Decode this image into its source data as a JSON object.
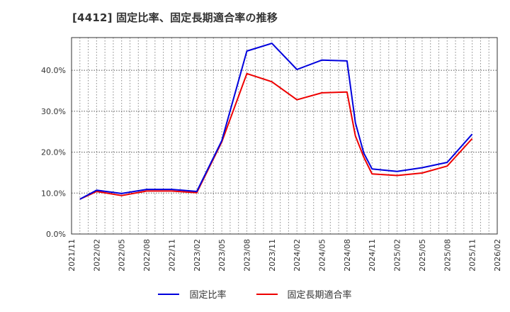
{
  "title": "[4412]  固定比率、固定長期適合率の推移",
  "colors": {
    "series1": "#0000dd",
    "series2": "#ee0000",
    "grid": "#888888",
    "axis": "#333333"
  },
  "legend": [
    {
      "label": "固定比率",
      "color": "#0000dd"
    },
    {
      "label": "固定長期適合率",
      "color": "#ee0000"
    }
  ],
  "chart_data": {
    "type": "line",
    "title": "[4412] 固定比率、固定長期適合率の推移",
    "xlabel": "",
    "ylabel": "",
    "ylim": [
      0,
      48
    ],
    "y_ticks": [
      "0.0%",
      "10.0%",
      "20.0%",
      "30.0%",
      "40.0%"
    ],
    "y_tick_values": [
      0,
      10,
      20,
      30,
      40
    ],
    "x_ticks": [
      "2021/11",
      "2022/02",
      "2022/05",
      "2022/08",
      "2022/11",
      "2023/02",
      "2023/05",
      "2023/08",
      "2023/11",
      "2024/02",
      "2024/05",
      "2024/08",
      "2024/11",
      "2025/02",
      "2025/05",
      "2025/08",
      "2025/11",
      "2026/02"
    ],
    "x_range": [
      "2021/11",
      "2026/02"
    ],
    "grid": true,
    "legend_position": "bottom",
    "x": [
      "2021/12",
      "2022/02",
      "2022/05",
      "2022/08",
      "2022/11",
      "2023/02",
      "2023/05",
      "2023/08",
      "2023/11",
      "2024/02",
      "2024/05",
      "2024/08",
      "2024/09",
      "2024/10",
      "2024/11",
      "2025/02",
      "2025/05",
      "2025/08",
      "2025/11"
    ],
    "series": [
      {
        "name": "固定比率",
        "color": "#0000dd",
        "values": [
          8.5,
          10.7,
          9.9,
          10.9,
          10.9,
          10.4,
          22.8,
          44.7,
          46.6,
          40.2,
          42.5,
          42.3,
          27.2,
          19.8,
          15.9,
          15.3,
          16.2,
          17.5,
          24.4
        ]
      },
      {
        "name": "固定長期適合率",
        "color": "#ee0000",
        "values": [
          8.5,
          10.4,
          9.4,
          10.5,
          10.5,
          10.1,
          22.5,
          39.2,
          37.2,
          32.8,
          34.5,
          34.7,
          24.0,
          18.8,
          14.7,
          14.3,
          14.9,
          16.6,
          23.3
        ]
      }
    ]
  }
}
